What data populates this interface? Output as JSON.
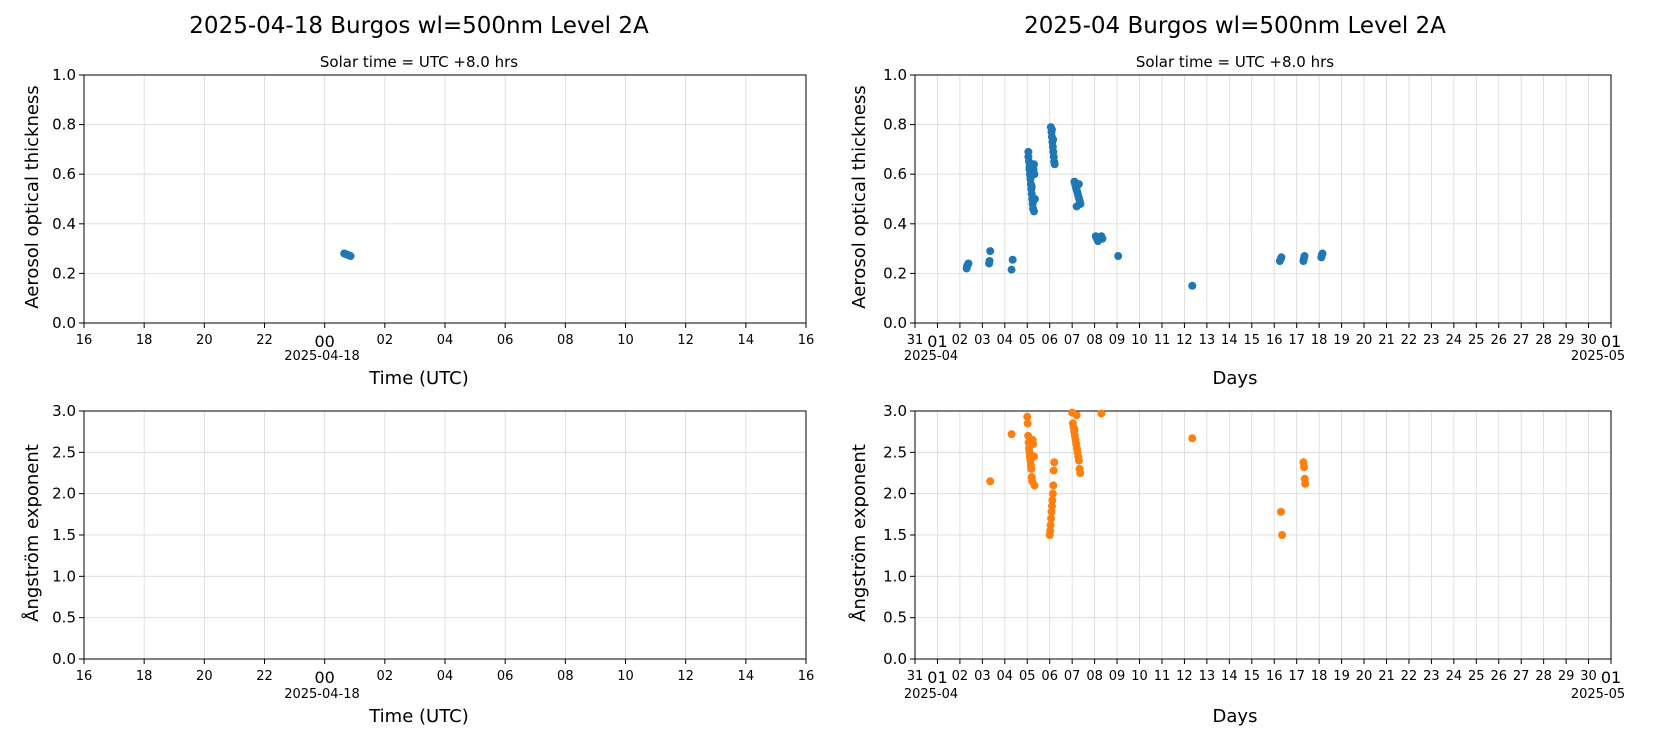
{
  "chart_data": [
    {
      "type": "scatter",
      "panel": "daily-aod",
      "title": "2025-04-18  Burgos  wl=500nm  Level 2A",
      "subtitle": "Solar time = UTC +8.0 hrs",
      "xlabel": "Time (UTC)",
      "ylabel": "Aerosol optical thickness",
      "x_unit": "hours relative to 2025-04-18 00:00 UTC",
      "xlim": [
        -8,
        16
      ],
      "ylim": [
        0,
        1.0
      ],
      "yticks": [
        "0.0",
        "0.2",
        "0.4",
        "0.6",
        "0.8",
        "1.0"
      ],
      "xtick_labels": [
        "16",
        "18",
        "20",
        "22",
        "00",
        "02",
        "04",
        "06",
        "08",
        "10",
        "12",
        "14",
        "16"
      ],
      "x_date_label": "2025-04-18",
      "grid": true,
      "color": "#1f77b4",
      "series": [
        {
          "x": [
            0.65,
            0.72,
            0.8,
            0.86
          ],
          "y": [
            0.28,
            0.277,
            0.273,
            0.27
          ]
        }
      ]
    },
    {
      "type": "scatter",
      "panel": "monthly-aod",
      "title": "2025-04  Burgos  wl=500nm  Level 2A",
      "subtitle": "Solar time = UTC +8.0 hrs",
      "xlabel": "Days",
      "ylabel": "Aerosol optical thickness",
      "x_unit": "day of April 2025",
      "xlim": [
        0,
        31
      ],
      "ylim": [
        0,
        1.0
      ],
      "yticks": [
        "0.0",
        "0.2",
        "0.4",
        "0.6",
        "0.8",
        "1.0"
      ],
      "xtick_labels": [
        "31",
        "01",
        "02",
        "03",
        "04",
        "05",
        "06",
        "07",
        "08",
        "09",
        "10",
        "11",
        "12",
        "13",
        "14",
        "15",
        "16",
        "17",
        "18",
        "19",
        "20",
        "21",
        "22",
        "23",
        "24",
        "25",
        "26",
        "27",
        "28",
        "29",
        "30",
        "01"
      ],
      "x_date_label_left": "2025-04",
      "x_date_label_right": "2025-05",
      "grid": true,
      "color": "#1f77b4",
      "series": [
        {
          "x": [
            2.3,
            2.32,
            2.35,
            2.38,
            3.3,
            3.32,
            3.35,
            4.3,
            4.35,
            5.05,
            5.08,
            5.1,
            5.12,
            5.14,
            5.16,
            5.18,
            5.2,
            5.22,
            5.24,
            5.26,
            5.28,
            5.3,
            5.32,
            5.34,
            5.05,
            5.1,
            5.15,
            5.2,
            5.25,
            5.3,
            6.05,
            6.08,
            6.1,
            6.12,
            6.14,
            6.16,
            6.18,
            6.2,
            6.22,
            6.1,
            6.15,
            7.1,
            7.13,
            7.16,
            7.19,
            7.22,
            7.25,
            7.28,
            7.31,
            7.34,
            7.37,
            7.2,
            7.3,
            8.05,
            8.1,
            8.15,
            8.3,
            8.35,
            9.05,
            12.35,
            16.25,
            16.3,
            16.32,
            17.3,
            17.32,
            17.35,
            18.1,
            18.12,
            18.15
          ],
          "y": [
            0.22,
            0.23,
            0.235,
            0.24,
            0.24,
            0.25,
            0.29,
            0.215,
            0.255,
            0.69,
            0.65,
            0.62,
            0.6,
            0.58,
            0.56,
            0.54,
            0.52,
            0.5,
            0.48,
            0.46,
            0.62,
            0.64,
            0.6,
            0.5,
            0.67,
            0.63,
            0.59,
            0.55,
            0.49,
            0.45,
            0.79,
            0.77,
            0.75,
            0.73,
            0.71,
            0.69,
            0.67,
            0.65,
            0.64,
            0.78,
            0.74,
            0.57,
            0.56,
            0.55,
            0.54,
            0.53,
            0.52,
            0.51,
            0.5,
            0.49,
            0.48,
            0.47,
            0.56,
            0.35,
            0.34,
            0.33,
            0.35,
            0.34,
            0.27,
            0.15,
            0.25,
            0.26,
            0.265,
            0.25,
            0.26,
            0.27,
            0.265,
            0.275,
            0.28
          ]
        }
      ]
    },
    {
      "type": "scatter",
      "panel": "daily-angstrom",
      "title": "",
      "xlabel": "Time (UTC)",
      "ylabel": "Ångström exponent",
      "x_unit": "hours relative to 2025-04-18 00:00 UTC",
      "xlim": [
        -8,
        16
      ],
      "ylim": [
        0,
        3.0
      ],
      "yticks": [
        "0.0",
        "0.5",
        "1.0",
        "1.5",
        "2.0",
        "2.5",
        "3.0"
      ],
      "xtick_labels": [
        "16",
        "18",
        "20",
        "22",
        "00",
        "02",
        "04",
        "06",
        "08",
        "10",
        "12",
        "14",
        "16"
      ],
      "x_date_label": "2025-04-18",
      "grid": true,
      "color": "#ff7f0e",
      "series": [
        {
          "x": [],
          "y": []
        }
      ]
    },
    {
      "type": "scatter",
      "panel": "monthly-angstrom",
      "title": "",
      "xlabel": "Days",
      "ylabel": "Ångström exponent",
      "x_unit": "day of April 2025",
      "xlim": [
        0,
        31
      ],
      "ylim": [
        0,
        3.0
      ],
      "yticks": [
        "0.0",
        "0.5",
        "1.0",
        "1.5",
        "2.0",
        "2.5",
        "3.0"
      ],
      "xtick_labels": [
        "31",
        "01",
        "02",
        "03",
        "04",
        "05",
        "06",
        "07",
        "08",
        "09",
        "10",
        "11",
        "12",
        "13",
        "14",
        "15",
        "16",
        "17",
        "18",
        "19",
        "20",
        "21",
        "22",
        "23",
        "24",
        "25",
        "26",
        "27",
        "28",
        "29",
        "30",
        "01"
      ],
      "x_date_label_left": "2025-04",
      "x_date_label_right": "2025-05",
      "grid": true,
      "color": "#ff7f0e",
      "series": [
        {
          "x": [
            3.35,
            4.3,
            5.0,
            5.02,
            5.04,
            5.06,
            5.08,
            5.1,
            5.12,
            5.14,
            5.16,
            5.18,
            5.2,
            5.22,
            5.24,
            5.26,
            5.3,
            5.32,
            6.0,
            6.02,
            6.04,
            6.06,
            6.08,
            6.1,
            6.12,
            6.14,
            6.16,
            6.18,
            6.2,
            7.0,
            7.03,
            7.06,
            7.09,
            7.12,
            7.15,
            7.18,
            7.21,
            7.24,
            7.27,
            7.3,
            7.33,
            7.36,
            7.1,
            7.2,
            8.3,
            12.35,
            16.3,
            16.35,
            17.3,
            17.33,
            17.36,
            17.38
          ],
          "y": [
            2.15,
            2.72,
            2.93,
            2.85,
            2.7,
            2.62,
            2.55,
            2.5,
            2.45,
            2.4,
            2.35,
            2.3,
            2.2,
            2.15,
            2.65,
            2.6,
            2.45,
            2.1,
            1.5,
            1.55,
            1.62,
            1.7,
            1.78,
            1.85,
            1.92,
            2.0,
            2.1,
            2.28,
            2.38,
            2.98,
            2.85,
            2.8,
            2.75,
            2.7,
            2.65,
            2.6,
            2.55,
            2.5,
            2.45,
            2.4,
            2.3,
            2.25,
            2.78,
            2.95,
            2.97,
            2.67,
            1.78,
            1.5,
            2.38,
            2.32,
            2.18,
            2.12
          ]
        }
      ]
    }
  ]
}
